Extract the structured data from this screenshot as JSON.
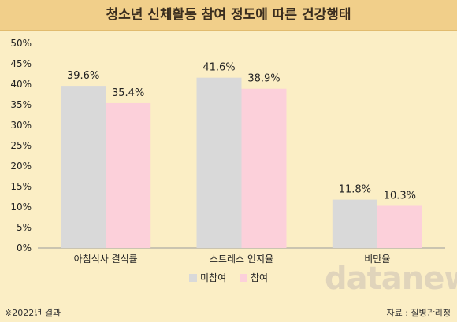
{
  "chart_data": {
    "type": "bar",
    "title": "청소년 신체활동 참여 정도에 따른 건강행태",
    "categories": [
      "아침식사 결식률",
      "스트레스 인지율",
      "비만율"
    ],
    "series": [
      {
        "name": "미참여",
        "values": [
          39.6,
          41.6,
          11.8
        ],
        "color": "#d9d9d9"
      },
      {
        "name": "참여",
        "values": [
          35.4,
          38.9,
          10.3
        ],
        "color": "#fcd0da"
      }
    ],
    "value_labels": [
      [
        "39.6%",
        "41.6%",
        "11.8%"
      ],
      [
        "35.4%",
        "38.9%",
        "10.3%"
      ]
    ],
    "y_ticks": [
      "0%",
      "5%",
      "10%",
      "15%",
      "20%",
      "25%",
      "30%",
      "35%",
      "40%",
      "45%",
      "50%"
    ],
    "ylim": [
      0,
      50
    ],
    "unit": "%",
    "legend_position": "bottom-center",
    "grid": false
  },
  "footnote": "※2022년 결과",
  "source": "자료 : 질병관리청",
  "watermark": "datanews",
  "colors": {
    "background": "#fbeec5",
    "title_bar": "#f1cf8a"
  }
}
